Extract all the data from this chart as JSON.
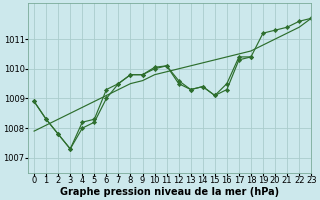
{
  "xlabel": "Graphe pression niveau de la mer (hPa)",
  "background_color": "#cce8ec",
  "grid_color": "#aacccc",
  "line_color": "#2d6e2d",
  "marker_color": "#2d6e2d",
  "xlim": [
    -0.5,
    23
  ],
  "ylim": [
    1006.5,
    1012.2
  ],
  "yticks": [
    1007,
    1008,
    1009,
    1010,
    1011
  ],
  "xticks": [
    0,
    1,
    2,
    3,
    4,
    5,
    6,
    7,
    8,
    9,
    10,
    11,
    12,
    13,
    14,
    15,
    16,
    17,
    18,
    19,
    20,
    21,
    22,
    23
  ],
  "series": [
    {
      "x": [
        0,
        1,
        2,
        3,
        4,
        5,
        6,
        7,
        8,
        9,
        10,
        11,
        12,
        13,
        14,
        15,
        16,
        17,
        18,
        19,
        20,
        21,
        22,
        23
      ],
      "y": [
        1007.9,
        1008.1,
        1008.3,
        1008.5,
        1008.7,
        1008.9,
        1009.1,
        1009.3,
        1009.5,
        1009.6,
        1009.8,
        1009.9,
        1010.0,
        1010.1,
        1010.2,
        1010.3,
        1010.4,
        1010.5,
        1010.6,
        1010.8,
        1011.0,
        1011.2,
        1011.4,
        1011.7
      ],
      "has_markers": false
    },
    {
      "x": [
        0,
        1,
        2,
        3,
        4,
        5,
        6,
        7,
        8,
        9,
        10,
        11,
        12,
        13,
        14,
        15,
        16,
        17,
        18
      ],
      "y": [
        1008.9,
        1008.3,
        1007.8,
        1007.3,
        1008.2,
        1008.3,
        1009.3,
        1009.5,
        1009.8,
        1009.8,
        1010.0,
        1010.1,
        1009.5,
        1009.3,
        1009.4,
        1009.1,
        1009.3,
        1010.3,
        1010.4
      ],
      "has_markers": true
    },
    {
      "x": [
        0,
        1,
        2,
        3,
        4,
        5,
        6,
        7,
        8,
        9,
        10,
        11,
        12,
        13,
        14,
        15,
        16,
        17,
        18,
        19,
        20,
        21,
        22,
        23
      ],
      "y": [
        1008.9,
        1008.3,
        1007.8,
        1007.3,
        1008.0,
        1008.2,
        1009.0,
        1009.5,
        1009.8,
        1009.8,
        1010.05,
        1010.1,
        1009.6,
        1009.3,
        1009.4,
        1009.1,
        1009.5,
        1010.4,
        1010.4,
        1011.2,
        1011.3,
        1011.4,
        1011.6,
        1011.7
      ],
      "has_markers": true
    }
  ],
  "xlabel_fontsize": 7,
  "tick_fontsize": 6
}
